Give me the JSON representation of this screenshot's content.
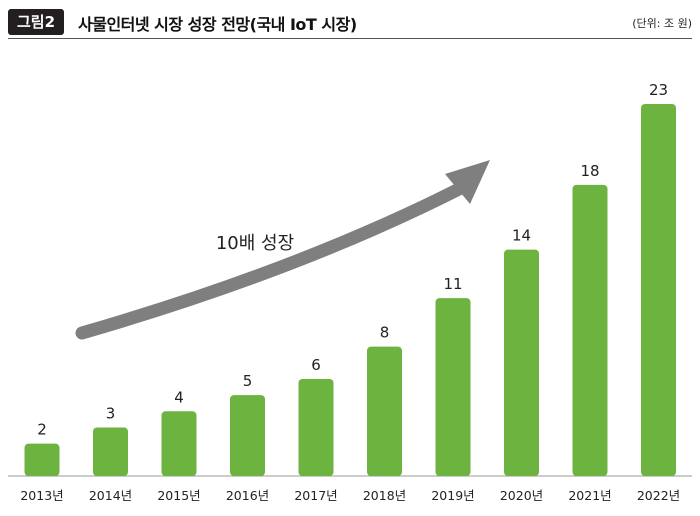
{
  "header": {
    "figure_label": "그림2",
    "title": "사물인터넷 시장 성장 전망(국내 IoT 시장)",
    "unit": "(단위: 조 원)"
  },
  "colors": {
    "bar": "#6cb33f",
    "arrow": "#7f7f7f",
    "badge": "#231f20"
  },
  "chart_data": {
    "type": "bar",
    "title": "사물인터넷 시장 성장 전망(국내 IoT 시장)",
    "unit": "(단위: 조 원)",
    "categories": [
      "2013년",
      "2014년",
      "2015년",
      "2016년",
      "2017년",
      "2018년",
      "2019년",
      "2020년",
      "2021년",
      "2022년"
    ],
    "values": [
      2,
      3,
      4,
      5,
      6,
      8,
      11,
      14,
      18,
      23
    ],
    "ylim": [
      0,
      23
    ],
    "grid": false,
    "annotation": "10배 성장"
  }
}
